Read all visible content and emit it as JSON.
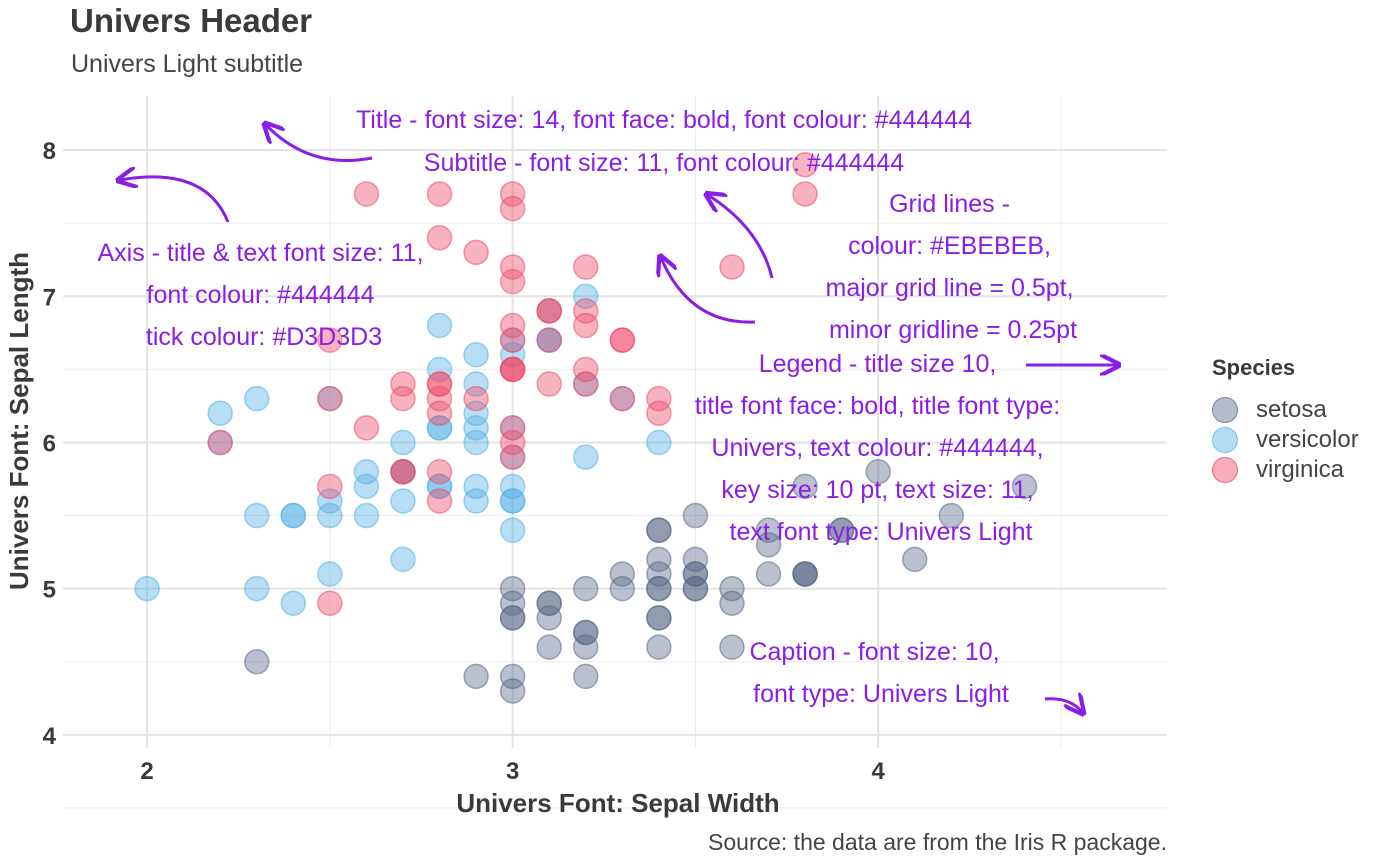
{
  "header": {
    "title": "Univers Header",
    "subtitle": "Univers Light subtitle",
    "caption": "Source: the data are from the Iris R package."
  },
  "colors": {
    "text": "#444444",
    "grid": "#EBEBEB",
    "annotation": "#8A1EE6",
    "setosa": "#5B6987",
    "versicolor": "#56B1E8",
    "virginica": "#EE4A68"
  },
  "legend": {
    "title": "Species",
    "items": [
      {
        "label": "setosa",
        "color": "#5B6987"
      },
      {
        "label": "versicolor",
        "color": "#56B1E8"
      },
      {
        "label": "virginica",
        "color": "#EE4A68"
      }
    ]
  },
  "annotations": {
    "title_note": [
      "Title - font size: 14, font face: bold, font colour: #444444"
    ],
    "subtitle_note": [
      "Subtitle - font size: 11, font colour: #444444"
    ],
    "axis_note": [
      "Axis - title & text font size: 11,",
      "font colour: #444444",
      "tick colour: #D3D3D3"
    ],
    "grid_note": [
      "Grid lines -",
      "colour: #EBEBEB,",
      "major grid line = 0.5pt,",
      "minor gridline = 0.25pt"
    ],
    "legend_note": [
      "Legend - title size 10,",
      "title font face: bold, title font type:",
      "Univers, text colour: #444444,",
      "key size: 10 pt, text size: 11,",
      "text font type: Univers Light"
    ],
    "caption_note": [
      "Caption - font size: 10,",
      "font type: Univers Light"
    ]
  },
  "chart_data": {
    "type": "scatter",
    "xlabel": "Univers Font: Sepal Width",
    "ylabel": "Univers Font: Sepal Length",
    "xlim": [
      1.77,
      4.79
    ],
    "ylim": [
      3.91,
      8.37
    ],
    "x_ticks": [
      2,
      3,
      4
    ],
    "y_ticks": [
      4,
      5,
      6,
      7,
      8
    ],
    "grid": true,
    "legend_position": "right",
    "series": [
      {
        "name": "setosa",
        "points": [
          [
            3.5,
            5.1
          ],
          [
            3.0,
            4.9
          ],
          [
            3.2,
            4.7
          ],
          [
            3.1,
            4.6
          ],
          [
            3.6,
            5.0
          ],
          [
            3.9,
            5.4
          ],
          [
            3.4,
            4.6
          ],
          [
            3.4,
            5.0
          ],
          [
            2.9,
            4.4
          ],
          [
            3.1,
            4.9
          ],
          [
            3.7,
            5.4
          ],
          [
            3.4,
            4.8
          ],
          [
            3.0,
            4.8
          ],
          [
            3.0,
            4.3
          ],
          [
            4.0,
            5.8
          ],
          [
            4.4,
            5.7
          ],
          [
            3.9,
            5.4
          ],
          [
            3.5,
            5.1
          ],
          [
            3.8,
            5.7
          ],
          [
            3.8,
            5.1
          ],
          [
            3.4,
            5.4
          ],
          [
            3.7,
            5.1
          ],
          [
            3.6,
            4.6
          ],
          [
            3.3,
            5.1
          ],
          [
            3.4,
            4.8
          ],
          [
            3.0,
            5.0
          ],
          [
            3.4,
            5.0
          ],
          [
            3.5,
            5.2
          ],
          [
            3.4,
            5.2
          ],
          [
            3.2,
            4.7
          ],
          [
            3.1,
            4.8
          ],
          [
            3.4,
            5.4
          ],
          [
            4.1,
            5.2
          ],
          [
            4.2,
            5.5
          ],
          [
            3.1,
            4.9
          ],
          [
            3.2,
            5.0
          ],
          [
            3.5,
            5.5
          ],
          [
            3.6,
            4.9
          ],
          [
            3.0,
            4.4
          ],
          [
            3.4,
            5.1
          ],
          [
            3.5,
            5.0
          ],
          [
            2.3,
            4.5
          ],
          [
            3.2,
            4.4
          ],
          [
            3.5,
            5.0
          ],
          [
            3.8,
            5.1
          ],
          [
            3.0,
            4.8
          ],
          [
            3.8,
            5.1
          ],
          [
            3.2,
            4.6
          ],
          [
            3.7,
            5.3
          ],
          [
            3.3,
            5.0
          ]
        ]
      },
      {
        "name": "versicolor",
        "points": [
          [
            3.2,
            7.0
          ],
          [
            3.2,
            6.4
          ],
          [
            3.1,
            6.9
          ],
          [
            2.3,
            5.5
          ],
          [
            2.8,
            6.5
          ],
          [
            2.8,
            5.7
          ],
          [
            3.3,
            6.3
          ],
          [
            2.4,
            4.9
          ],
          [
            2.9,
            6.6
          ],
          [
            2.7,
            5.2
          ],
          [
            2.0,
            5.0
          ],
          [
            3.0,
            5.9
          ],
          [
            2.2,
            6.0
          ],
          [
            2.9,
            6.1
          ],
          [
            2.9,
            5.6
          ],
          [
            3.1,
            6.7
          ],
          [
            3.0,
            5.6
          ],
          [
            2.7,
            5.8
          ],
          [
            2.2,
            6.2
          ],
          [
            2.5,
            5.6
          ],
          [
            3.2,
            5.9
          ],
          [
            2.8,
            6.1
          ],
          [
            2.5,
            6.3
          ],
          [
            2.8,
            6.1
          ],
          [
            2.9,
            6.4
          ],
          [
            3.0,
            6.6
          ],
          [
            2.8,
            6.8
          ],
          [
            3.0,
            6.7
          ],
          [
            2.9,
            6.0
          ],
          [
            2.6,
            5.7
          ],
          [
            2.4,
            5.5
          ],
          [
            2.4,
            5.5
          ],
          [
            2.7,
            5.8
          ],
          [
            2.7,
            6.0
          ],
          [
            3.0,
            5.4
          ],
          [
            3.4,
            6.0
          ],
          [
            3.1,
            6.7
          ],
          [
            2.3,
            6.3
          ],
          [
            3.0,
            5.6
          ],
          [
            2.5,
            5.5
          ],
          [
            2.6,
            5.5
          ],
          [
            3.0,
            6.1
          ],
          [
            2.6,
            5.8
          ],
          [
            2.3,
            5.0
          ],
          [
            2.7,
            5.6
          ],
          [
            3.0,
            5.7
          ],
          [
            2.9,
            5.7
          ],
          [
            2.9,
            6.2
          ],
          [
            2.5,
            5.1
          ],
          [
            2.8,
            5.7
          ]
        ]
      },
      {
        "name": "virginica",
        "points": [
          [
            3.3,
            6.3
          ],
          [
            2.7,
            5.8
          ],
          [
            3.0,
            7.1
          ],
          [
            2.9,
            6.3
          ],
          [
            3.0,
            6.5
          ],
          [
            3.0,
            7.6
          ],
          [
            2.5,
            4.9
          ],
          [
            2.9,
            7.3
          ],
          [
            2.5,
            6.7
          ],
          [
            3.6,
            7.2
          ],
          [
            3.2,
            6.5
          ],
          [
            2.7,
            6.4
          ],
          [
            3.0,
            6.8
          ],
          [
            2.5,
            5.7
          ],
          [
            2.8,
            5.8
          ],
          [
            3.2,
            6.4
          ],
          [
            3.0,
            6.5
          ],
          [
            3.8,
            7.7
          ],
          [
            2.6,
            7.7
          ],
          [
            2.2,
            6.0
          ],
          [
            3.2,
            6.9
          ],
          [
            2.8,
            5.6
          ],
          [
            2.8,
            7.7
          ],
          [
            2.7,
            6.3
          ],
          [
            3.3,
            6.7
          ],
          [
            3.2,
            7.2
          ],
          [
            2.8,
            6.2
          ],
          [
            3.0,
            6.1
          ],
          [
            2.8,
            6.4
          ],
          [
            3.0,
            7.2
          ],
          [
            2.8,
            7.4
          ],
          [
            3.8,
            7.9
          ],
          [
            2.8,
            6.4
          ],
          [
            2.8,
            6.3
          ],
          [
            2.6,
            6.1
          ],
          [
            3.0,
            7.7
          ],
          [
            3.4,
            6.3
          ],
          [
            3.1,
            6.4
          ],
          [
            3.0,
            6.0
          ],
          [
            3.1,
            6.9
          ],
          [
            3.1,
            6.7
          ],
          [
            3.1,
            6.9
          ],
          [
            2.7,
            5.8
          ],
          [
            3.2,
            6.8
          ],
          [
            3.3,
            6.7
          ],
          [
            3.0,
            6.7
          ],
          [
            2.5,
            6.3
          ],
          [
            3.0,
            6.5
          ],
          [
            3.4,
            6.2
          ],
          [
            3.0,
            5.9
          ]
        ]
      }
    ]
  }
}
